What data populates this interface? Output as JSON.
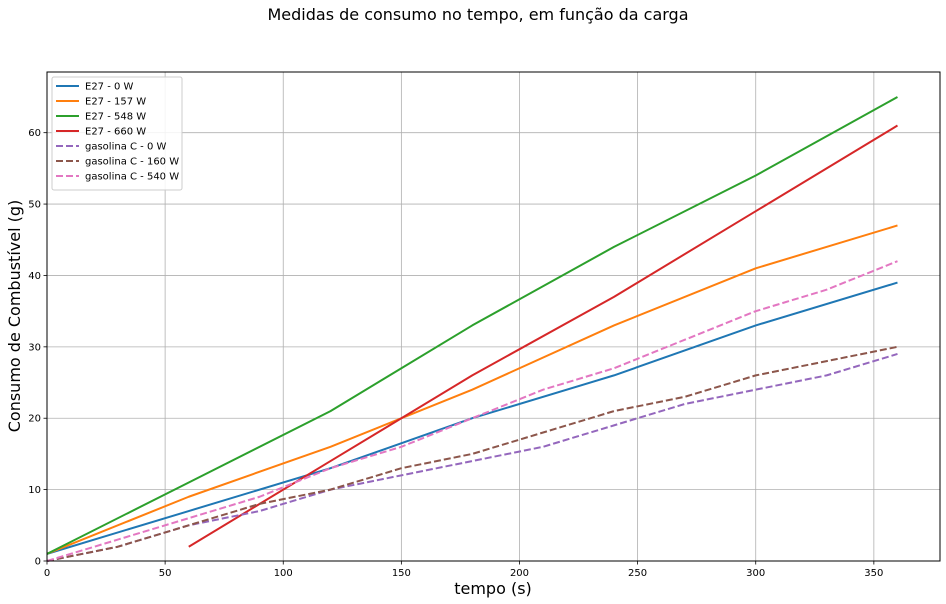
{
  "chart_data": {
    "type": "line",
    "title": "Medidas de consumo no tempo, em função da carga",
    "xlabel": "tempo (s)",
    "ylabel": "Consumo de Combustível (g)",
    "xlim": [
      0,
      378
    ],
    "ylim": [
      0,
      68.5
    ],
    "xticks": [
      0,
      50,
      100,
      150,
      200,
      250,
      300,
      350
    ],
    "yticks": [
      0,
      10,
      20,
      30,
      40,
      50,
      60
    ],
    "grid": true,
    "legend_position": "top-left",
    "series": [
      {
        "name": "E27 - 0 W",
        "color": "#1f77b4",
        "style": "solid",
        "x": [
          0,
          60,
          120,
          180,
          240,
          300,
          360
        ],
        "y": [
          1,
          7,
          13,
          20,
          26,
          33,
          39
        ]
      },
      {
        "name": "E27 - 157 W",
        "color": "#ff7f0e",
        "style": "solid",
        "x": [
          0,
          60,
          120,
          180,
          240,
          300,
          360
        ],
        "y": [
          1,
          9,
          16,
          24,
          33,
          41,
          47
        ]
      },
      {
        "name": "E27 - 548 W",
        "color": "#2ca02c",
        "style": "solid",
        "x": [
          0,
          60,
          120,
          180,
          240,
          300,
          360
        ],
        "y": [
          1,
          11,
          21,
          33,
          44,
          54,
          65
        ]
      },
      {
        "name": "E27 - 660 W",
        "color": "#d62728",
        "style": "solid",
        "x": [
          60,
          120,
          180,
          240,
          300,
          360
        ],
        "y": [
          2,
          14,
          26,
          37,
          49,
          61
        ]
      },
      {
        "name": "gasolina C - 0 W",
        "color": "#9467bd",
        "style": "dashed",
        "x": [
          0,
          30,
          60,
          90,
          120,
          150,
          180,
          210,
          240,
          270,
          300,
          330,
          360
        ],
        "y": [
          0,
          2,
          5,
          7,
          10,
          12,
          14,
          16,
          19,
          22,
          24,
          26,
          29
        ]
      },
      {
        "name": "gasolina C - 160 W",
        "color": "#8c564b",
        "style": "dashed",
        "x": [
          0,
          30,
          60,
          90,
          120,
          150,
          180,
          210,
          240,
          270,
          300,
          330,
          360
        ],
        "y": [
          0,
          2,
          5,
          8,
          10,
          13,
          15,
          18,
          21,
          23,
          26,
          28,
          30
        ]
      },
      {
        "name": "gasolina C - 540 W",
        "color": "#e377c2",
        "style": "dashed",
        "x": [
          0,
          30,
          60,
          90,
          120,
          150,
          180,
          210,
          240,
          270,
          300,
          330,
          360
        ],
        "y": [
          0,
          3,
          6,
          9,
          13,
          16,
          20,
          24,
          27,
          31,
          35,
          38,
          42
        ]
      }
    ]
  }
}
